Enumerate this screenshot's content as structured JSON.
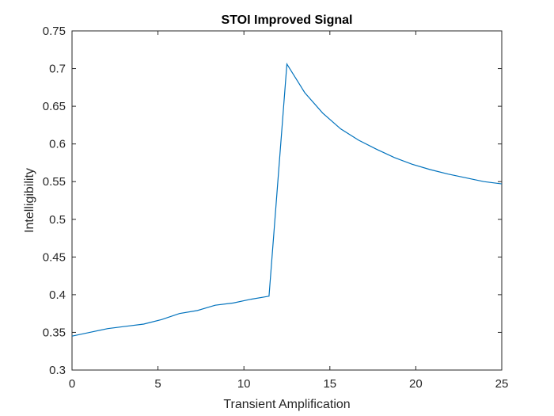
{
  "chart_data": {
    "type": "line",
    "title": "STOI Improved Signal",
    "xlabel": "Transient Amplification",
    "ylabel": "Intelligibility",
    "xlim": [
      0,
      25
    ],
    "ylim": [
      0.3,
      0.75
    ],
    "xticks": [
      0,
      5,
      10,
      15,
      20,
      25
    ],
    "xtick_labels": [
      "0",
      "5",
      "10",
      "15",
      "20",
      "25"
    ],
    "yticks": [
      0.3,
      0.35,
      0.4,
      0.45,
      0.5,
      0.55,
      0.6,
      0.65,
      0.7,
      0.75
    ],
    "ytick_labels": [
      "0.3",
      "0.35",
      "0.4",
      "0.45",
      "0.5",
      "0.55",
      "0.6",
      "0.65",
      "0.7",
      "0.75"
    ],
    "grid": false,
    "series": [
      {
        "color": "#0072bd",
        "x": [
          0,
          1.04,
          2.08,
          3.13,
          4.17,
          5.21,
          6.25,
          7.29,
          8.33,
          9.38,
          10.42,
          11.46,
          12.5,
          13.54,
          14.58,
          15.63,
          16.67,
          17.71,
          18.75,
          19.79,
          20.83,
          21.88,
          22.92,
          23.96,
          25
        ],
        "y": [
          0.345,
          0.35,
          0.355,
          0.358,
          0.361,
          0.367,
          0.375,
          0.379,
          0.386,
          0.389,
          0.394,
          0.398,
          0.706,
          0.668,
          0.641,
          0.62,
          0.605,
          0.593,
          0.582,
          0.573,
          0.566,
          0.56,
          0.555,
          0.55,
          0.547
        ]
      }
    ]
  }
}
